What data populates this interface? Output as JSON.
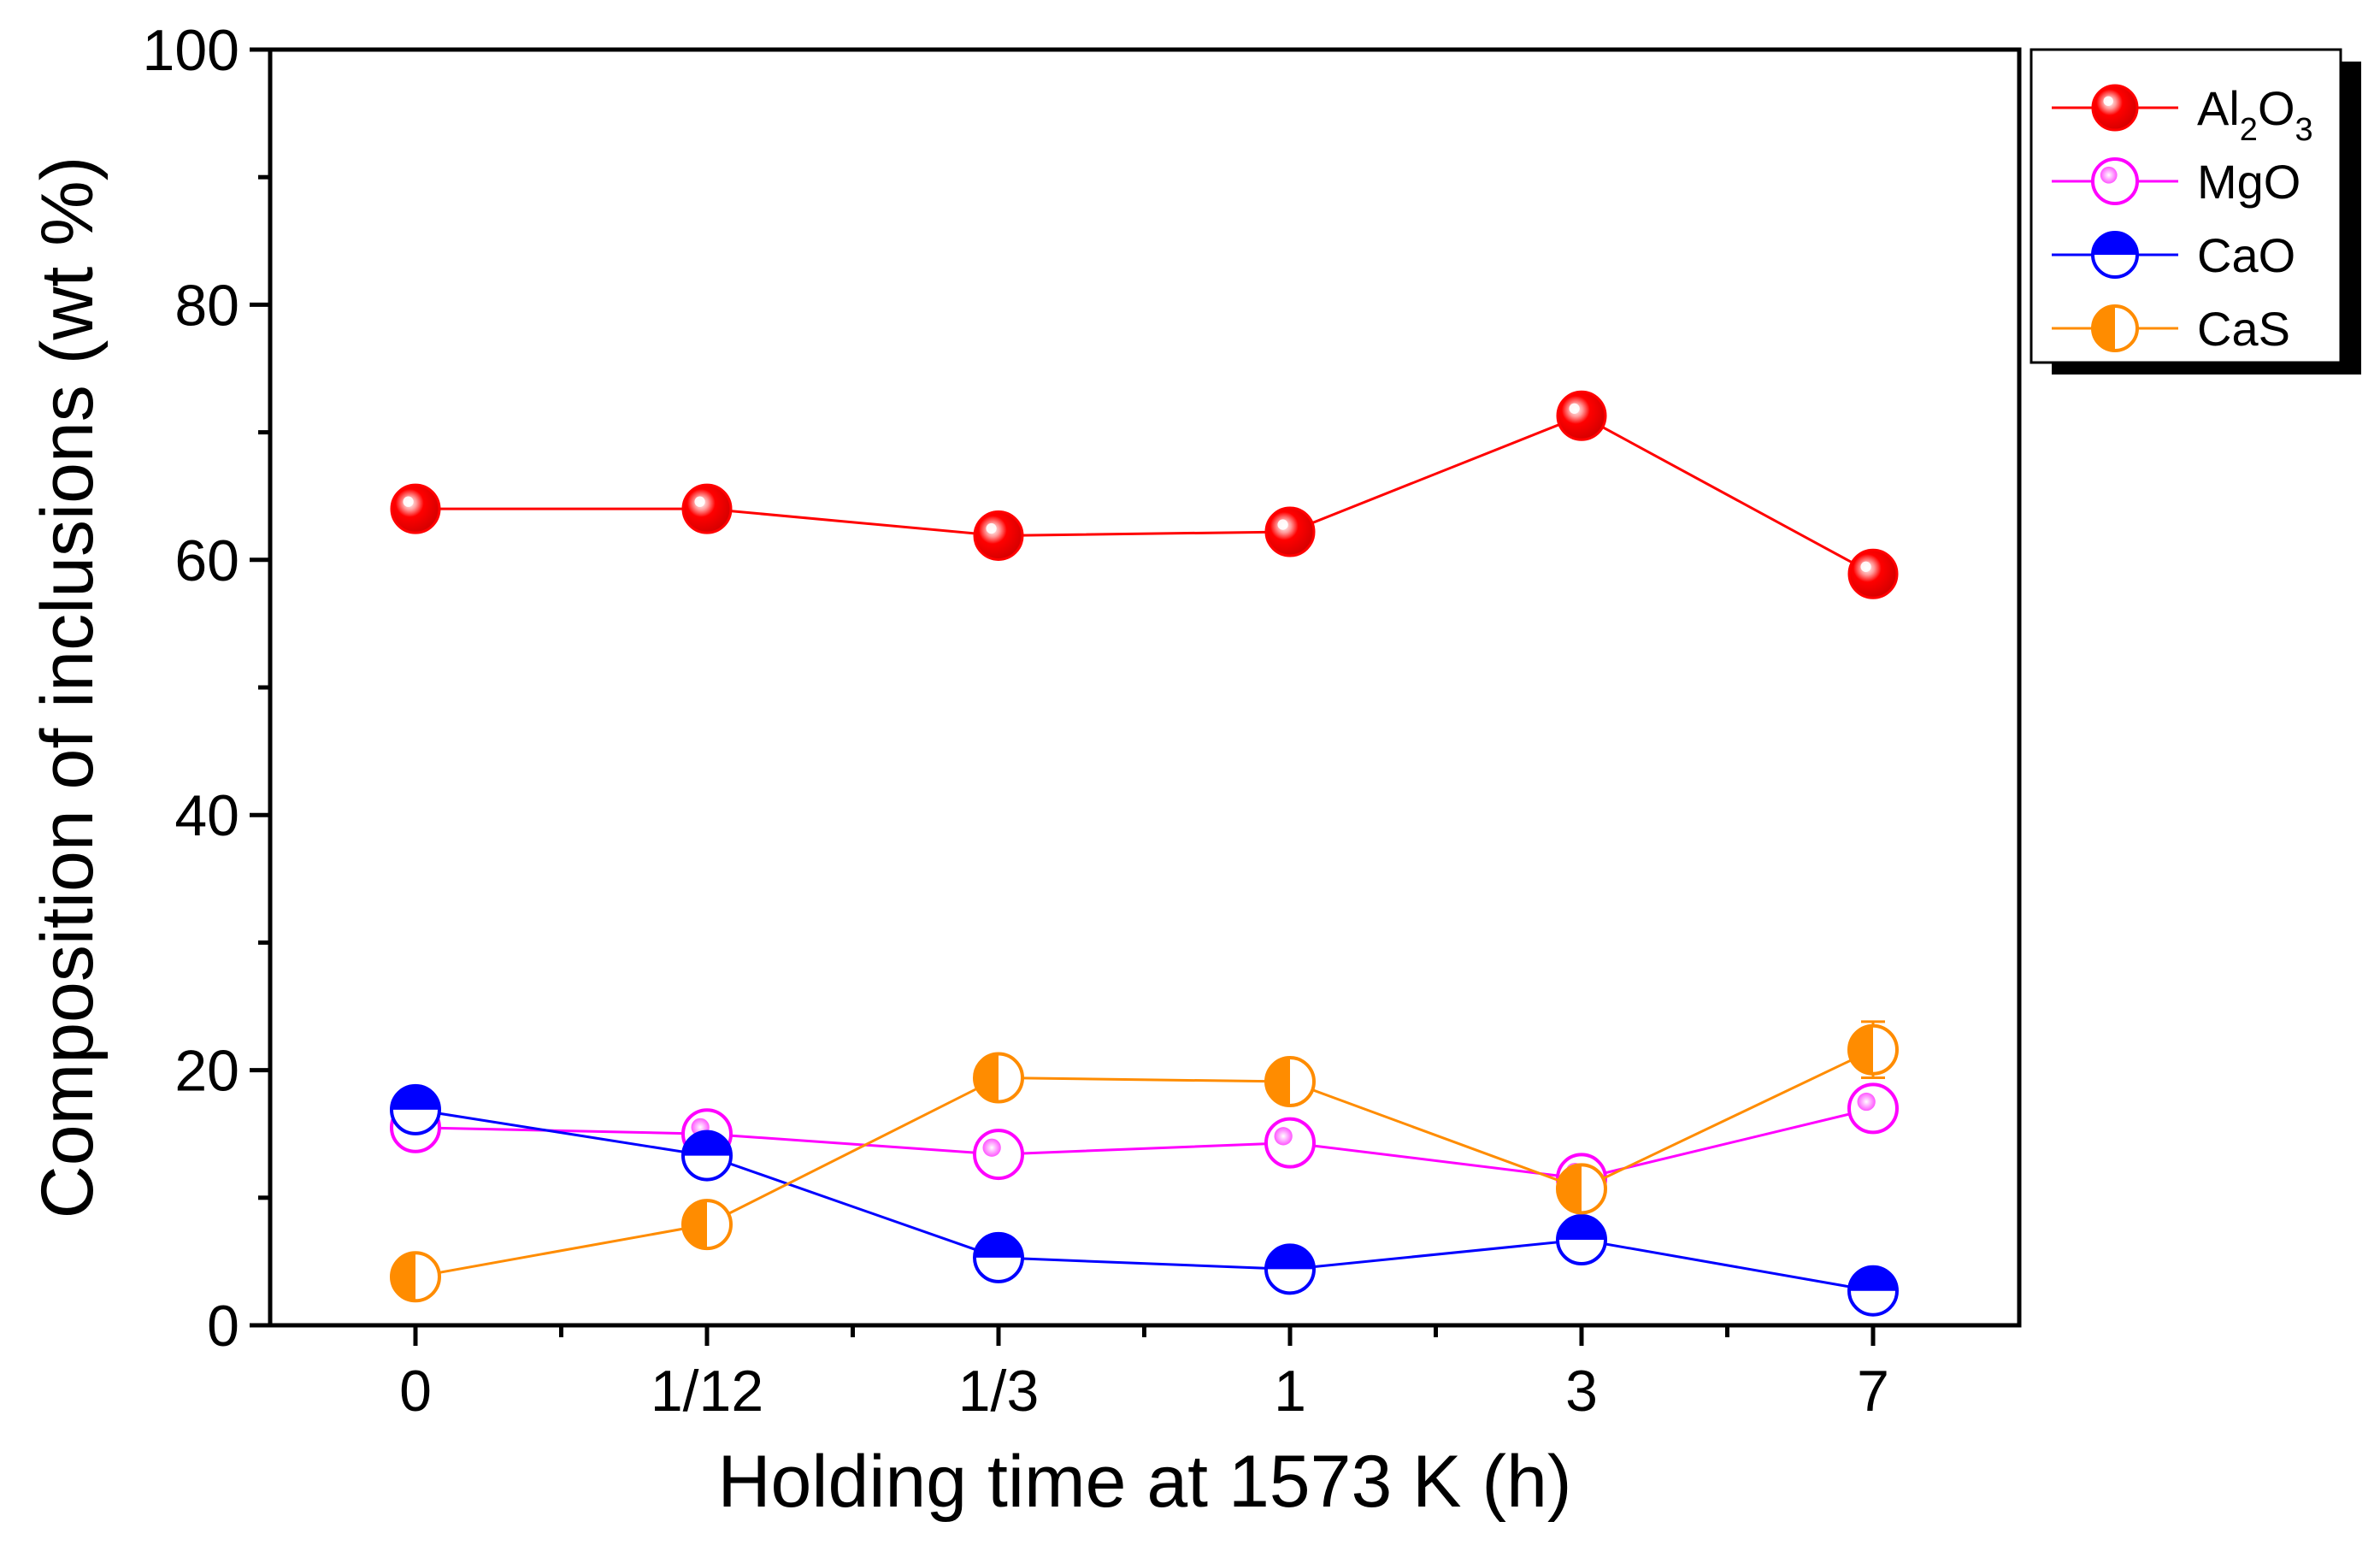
{
  "chart_data": {
    "type": "line",
    "title": "",
    "xlabel": "Holding time at 1573 K (h)",
    "ylabel": "Composition of inclusions (wt %)",
    "categories": [
      "0",
      "1/12",
      "1/3",
      "1",
      "3",
      "7"
    ],
    "ylim": [
      0,
      100
    ],
    "yticks": [
      0,
      20,
      40,
      60,
      80,
      100
    ],
    "grid": false,
    "legend_position": "top-right",
    "series": [
      {
        "name": "Al2O3",
        "label_parts": {
          "a": "Al",
          "sub1": "2",
          "b": "O",
          "sub2": "3"
        },
        "color": "#ff0000",
        "marker": "sphere",
        "values": [
          64.0,
          64.0,
          61.9,
          62.2,
          71.3,
          58.9
        ],
        "errors": [
          0.4,
          0.4,
          0.5,
          0.5,
          0.5,
          0.4
        ]
      },
      {
        "name": "MgO",
        "color": "#ff00ff",
        "marker": "open-circle-dot",
        "values": [
          15.5,
          15.0,
          13.4,
          14.3,
          11.5,
          17.0
        ],
        "errors": [
          1.2,
          1.0,
          1.5,
          1.3,
          1.0,
          1.5
        ]
      },
      {
        "name": "CaO",
        "color": "#0000ff",
        "marker": "half-top",
        "values": [
          16.9,
          13.3,
          5.3,
          4.4,
          6.7,
          2.7
        ],
        "errors": [
          1.0,
          0.8,
          0.8,
          0.7,
          0.8,
          0.6
        ]
      },
      {
        "name": "CaS",
        "color": "#ff8c00",
        "marker": "half-left",
        "values": [
          3.8,
          7.9,
          19.4,
          19.1,
          10.7,
          21.6
        ],
        "errors": [
          1.0,
          1.0,
          1.1,
          1.0,
          1.5,
          2.2
        ]
      }
    ]
  }
}
